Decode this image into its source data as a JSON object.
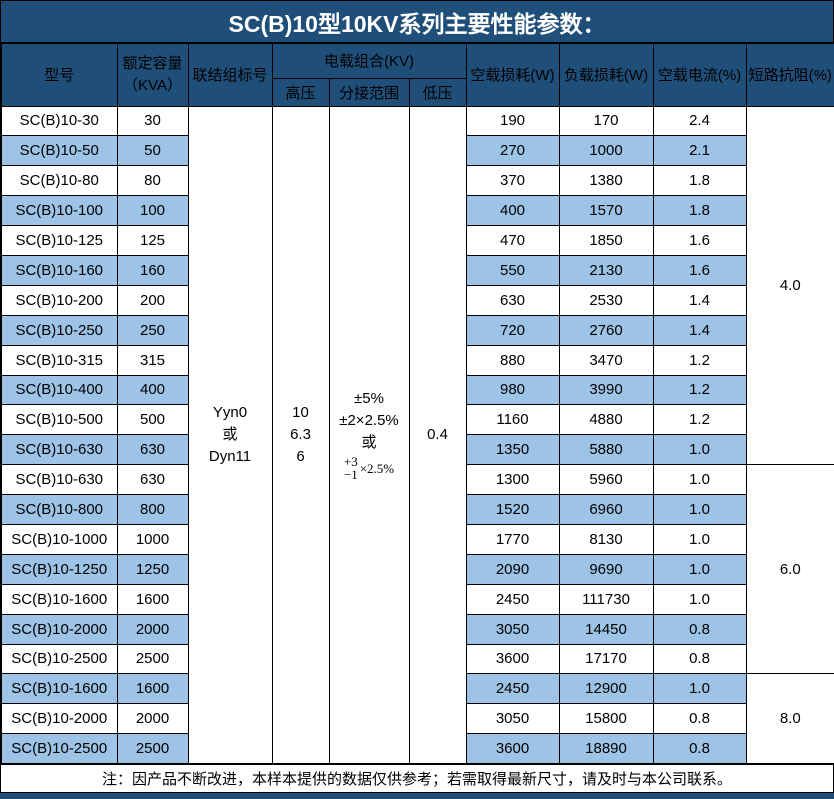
{
  "title": "SC(B)10型10KV系列主要性能参数：",
  "columns": {
    "model": "型号",
    "capacity": "额定容量\n（KVA）",
    "connection": "联结组标号",
    "voltage_group": "电载组合(KV)",
    "hv": "高压",
    "tap_range": "分接范围",
    "lv": "低压",
    "no_load_loss": "空载损耗(W)",
    "load_loss": "负载损耗(W)",
    "no_load_current": "空载电流(%)",
    "impedance": "短路抗阻(%)"
  },
  "merged": {
    "connection": "Yyn0\n或\nDyn11",
    "high_voltage": "10\n6.3\n6",
    "tap_lines": "±5%\n±2×2.5%\n或",
    "tap_fraction": {
      "top": "+3",
      "bottom": "−1",
      "suffix": "×2.5%"
    },
    "low_voltage": "0.4"
  },
  "impedance_groups": [
    {
      "value": "4.0",
      "row_span": 12
    },
    {
      "value": "6.0",
      "row_span": 7
    },
    {
      "value": "8.0",
      "row_span": 3
    }
  ],
  "rows": [
    {
      "model": "SC(B)10-30",
      "kva": "30",
      "no_load_loss": "190",
      "load_loss": "170",
      "no_load_current": "2.4"
    },
    {
      "model": "SC(B)10-50",
      "kva": "50",
      "no_load_loss": "270",
      "load_loss": "1000",
      "no_load_current": "2.1"
    },
    {
      "model": "SC(B)10-80",
      "kva": "80",
      "no_load_loss": "370",
      "load_loss": "1380",
      "no_load_current": "1.8"
    },
    {
      "model": "SC(B)10-100",
      "kva": "100",
      "no_load_loss": "400",
      "load_loss": "1570",
      "no_load_current": "1.8"
    },
    {
      "model": "SC(B)10-125",
      "kva": "125",
      "no_load_loss": "470",
      "load_loss": "1850",
      "no_load_current": "1.6"
    },
    {
      "model": "SC(B)10-160",
      "kva": "160",
      "no_load_loss": "550",
      "load_loss": "2130",
      "no_load_current": "1.6"
    },
    {
      "model": "SC(B)10-200",
      "kva": "200",
      "no_load_loss": "630",
      "load_loss": "2530",
      "no_load_current": "1.4"
    },
    {
      "model": "SC(B)10-250",
      "kva": "250",
      "no_load_loss": "720",
      "load_loss": "2760",
      "no_load_current": "1.4"
    },
    {
      "model": "SC(B)10-315",
      "kva": "315",
      "no_load_loss": "880",
      "load_loss": "3470",
      "no_load_current": "1.2"
    },
    {
      "model": "SC(B)10-400",
      "kva": "400",
      "no_load_loss": "980",
      "load_loss": "3990",
      "no_load_current": "1.2"
    },
    {
      "model": "SC(B)10-500",
      "kva": "500",
      "no_load_loss": "1160",
      "load_loss": "4880",
      "no_load_current": "1.2"
    },
    {
      "model": "SC(B)10-630",
      "kva": "630",
      "no_load_loss": "1350",
      "load_loss": "5880",
      "no_load_current": "1.0"
    },
    {
      "model": "SC(B)10-630",
      "kva": "630",
      "no_load_loss": "1300",
      "load_loss": "5960",
      "no_load_current": "1.0"
    },
    {
      "model": "SC(B)10-800",
      "kva": "800",
      "no_load_loss": "1520",
      "load_loss": "6960",
      "no_load_current": "1.0"
    },
    {
      "model": "SC(B)10-1000",
      "kva": "1000",
      "no_load_loss": "1770",
      "load_loss": "8130",
      "no_load_current": "1.0"
    },
    {
      "model": "SC(B)10-1250",
      "kva": "1250",
      "no_load_loss": "2090",
      "load_loss": "9690",
      "no_load_current": "1.0"
    },
    {
      "model": "SC(B)10-1600",
      "kva": "1600",
      "no_load_loss": "2450",
      "load_loss": "111730",
      "no_load_current": "1.0"
    },
    {
      "model": "SC(B)10-2000",
      "kva": "2000",
      "no_load_loss": "3050",
      "load_loss": "14450",
      "no_load_current": "0.8"
    },
    {
      "model": "SC(B)10-2500",
      "kva": "2500",
      "no_load_loss": "3600",
      "load_loss": "17170",
      "no_load_current": "0.8"
    },
    {
      "model": "SC(B)10-1600",
      "kva": "1600",
      "no_load_loss": "2450",
      "load_loss": "12900",
      "no_load_current": "1.0"
    },
    {
      "model": "SC(B)10-2000",
      "kva": "2000",
      "no_load_loss": "3050",
      "load_loss": "15800",
      "no_load_current": "0.8"
    },
    {
      "model": "SC(B)10-2500",
      "kva": "2500",
      "no_load_loss": "3600",
      "load_loss": "18890",
      "no_load_current": "0.8"
    }
  ],
  "footer_note": "注：因产品不断改进，本样本提供的数据仅供参考；若需取得最新尺寸，请及时与本公司联系。",
  "colors": {
    "header_bg": "#1F4E79",
    "stripe_bg": "#9DC3E6",
    "border": "#000000",
    "header_text": "#FFFFFF"
  }
}
